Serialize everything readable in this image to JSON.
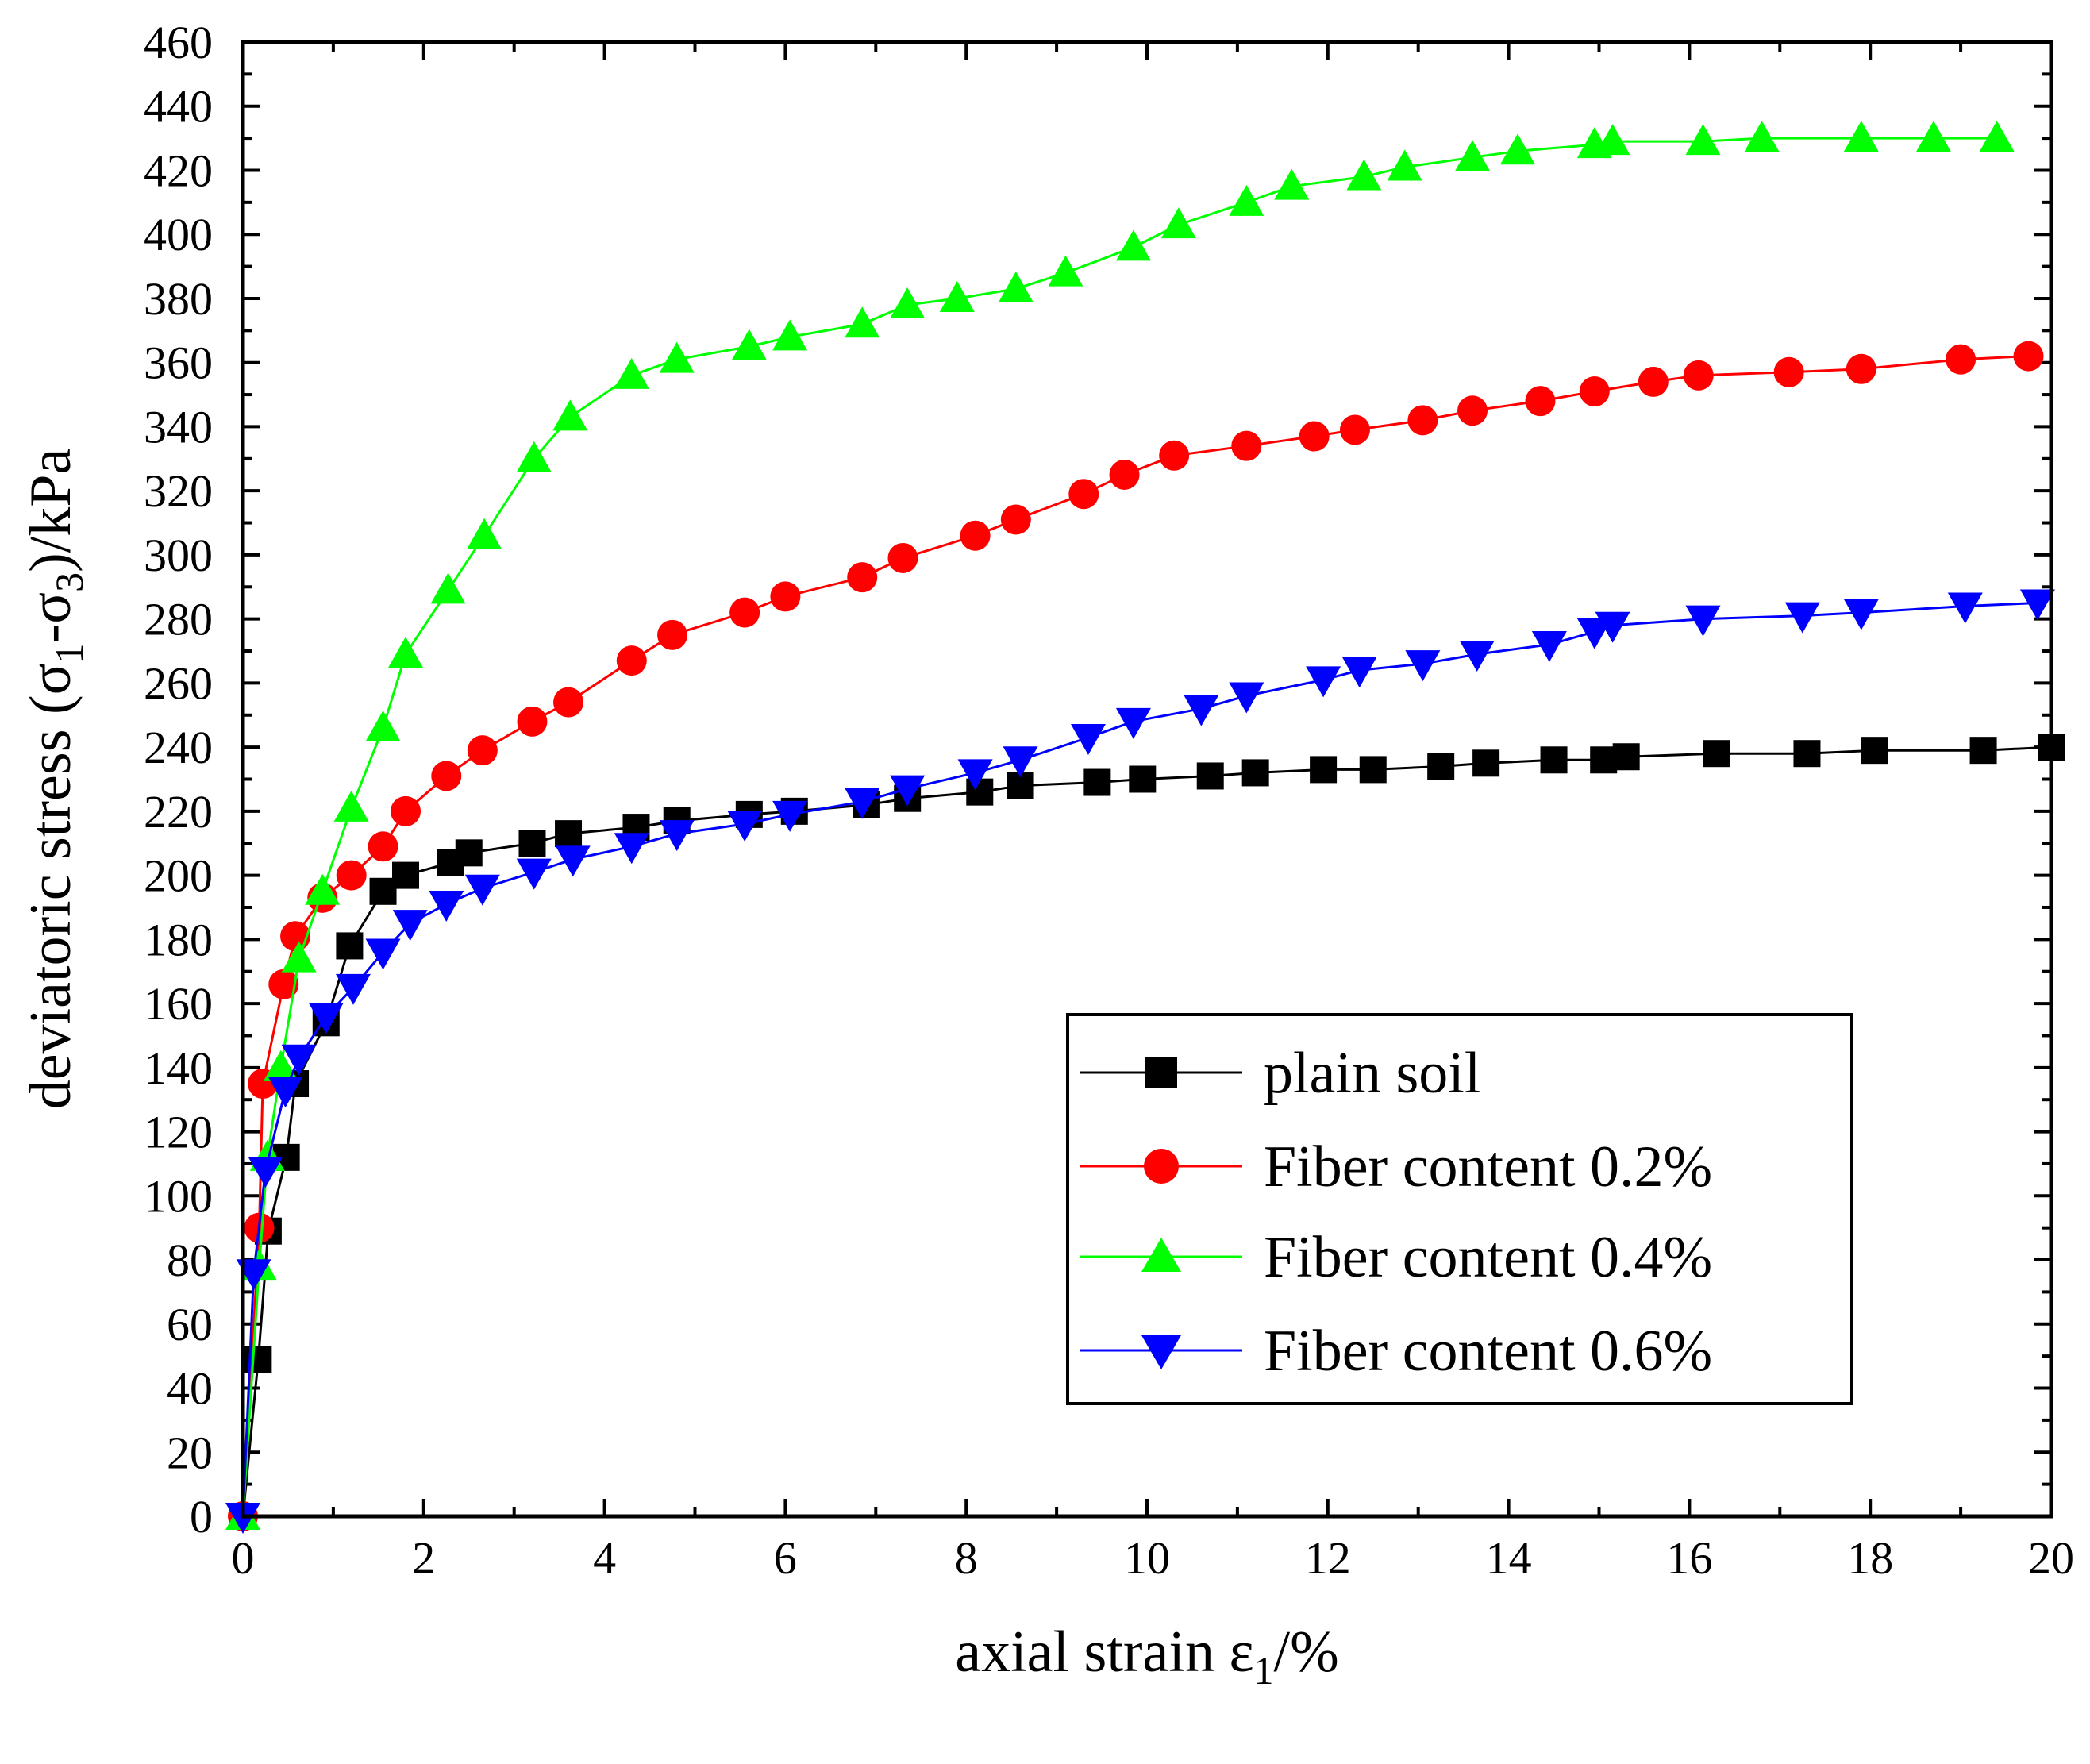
{
  "chart_data": {
    "type": "line",
    "title": "",
    "xlabel": "axial strain ε",
    "xlabel_sub": "1",
    "xlabel_suffix": "/%",
    "ylabel_prefix": "deviatoric stress (σ",
    "ylabel_sub1": "1",
    "ylabel_mid": "-σ",
    "ylabel_sub2": "3",
    "ylabel_suffix": ")/kPa",
    "xlim": [
      0,
      20
    ],
    "ylim": [
      0,
      460
    ],
    "x_ticks": [
      "0",
      "2",
      "4",
      "6",
      "8",
      "10",
      "12",
      "14",
      "16",
      "18",
      "20"
    ],
    "y_ticks": [
      "0",
      "20",
      "40",
      "60",
      "80",
      "100",
      "120",
      "140",
      "160",
      "180",
      "200",
      "220",
      "240",
      "260",
      "280",
      "300",
      "320",
      "340",
      "360",
      "380",
      "400",
      "420",
      "440",
      "460"
    ],
    "legend_position": "bottom-right",
    "series": [
      {
        "name": "plain soil",
        "color": "#000000",
        "marker": "square",
        "x": [
          0,
          0.17,
          0.28,
          0.48,
          0.58,
          0.92,
          1.18,
          1.55,
          1.8,
          2.3,
          2.5,
          3.2,
          3.6,
          4.35,
          4.8,
          5.6,
          6.1,
          6.9,
          7.35,
          8.15,
          8.6,
          9.45,
          9.95,
          10.7,
          11.2,
          11.95,
          12.5,
          13.25,
          13.75,
          14.5,
          15.05,
          15.3,
          16.3,
          17.3,
          18.05,
          19.25,
          20.0
        ],
        "y": [
          0,
          49,
          89,
          112,
          135,
          154,
          178,
          195,
          200,
          204,
          207,
          210,
          213,
          215,
          217,
          219,
          220,
          222,
          224,
          226,
          228,
          229,
          230,
          231,
          232,
          233,
          233,
          234,
          235,
          236,
          236,
          237,
          238,
          238,
          239,
          239,
          240
        ]
      },
      {
        "name": "Fiber content 0.2%",
        "color": "#ff0000",
        "marker": "circle",
        "x": [
          0,
          0.18,
          0.22,
          0.45,
          0.58,
          0.88,
          1.2,
          1.55,
          1.8,
          2.25,
          2.65,
          3.2,
          3.6,
          4.3,
          4.75,
          5.55,
          6.0,
          6.85,
          7.3,
          8.1,
          8.55,
          9.3,
          9.75,
          10.3,
          11.1,
          11.85,
          12.3,
          13.05,
          13.6,
          14.35,
          14.95,
          15.6,
          16.1,
          17.1,
          17.9,
          19.0,
          19.75
        ],
        "y": [
          0,
          90,
          135,
          166,
          181,
          193,
          200,
          209,
          220,
          231,
          239,
          248,
          254,
          267,
          275,
          282,
          287,
          293,
          299,
          306,
          311,
          319,
          325,
          331,
          334,
          337,
          339,
          342,
          345,
          348,
          351,
          354,
          356,
          357,
          358,
          361,
          362
        ]
      },
      {
        "name": "Fiber content 0.4%",
        "color": "#00ff00",
        "marker": "triangle-up",
        "x": [
          0,
          0.18,
          0.27,
          0.42,
          0.62,
          0.88,
          1.2,
          1.55,
          1.8,
          2.27,
          2.67,
          3.22,
          3.62,
          4.3,
          4.8,
          5.6,
          6.05,
          6.85,
          7.35,
          7.9,
          8.55,
          9.1,
          9.85,
          10.35,
          11.1,
          11.6,
          12.4,
          12.85,
          13.6,
          14.1,
          14.95,
          15.15,
          16.15,
          16.8,
          17.9,
          18.7,
          19.4
        ],
        "y": [
          0,
          78,
          112,
          140,
          174,
          195,
          221,
          246,
          269,
          289,
          306,
          330,
          343,
          356,
          361,
          365,
          368,
          372,
          378,
          380,
          383,
          388,
          396,
          403,
          410,
          415,
          418,
          421,
          424,
          426,
          428,
          429,
          429,
          430,
          430,
          430,
          430
        ]
      },
      {
        "name": "Fiber content 0.6%",
        "color": "#0000ff",
        "marker": "triangle-down",
        "x": [
          0,
          0.12,
          0.25,
          0.47,
          0.62,
          0.92,
          1.22,
          1.55,
          1.85,
          2.25,
          2.65,
          3.22,
          3.65,
          4.3,
          4.8,
          5.55,
          6.05,
          6.85,
          7.35,
          8.1,
          8.6,
          9.35,
          9.85,
          10.6,
          11.1,
          11.95,
          12.35,
          13.05,
          13.65,
          14.45,
          14.95,
          15.15,
          16.15,
          17.25,
          17.9,
          19.05,
          19.85
        ],
        "y": [
          0,
          76,
          108,
          133,
          143,
          156,
          165,
          176,
          185,
          191,
          196,
          201,
          205,
          209,
          213,
          216,
          219,
          223,
          227,
          232,
          236,
          243,
          248,
          252,
          256,
          261,
          264,
          266,
          269,
          272,
          276,
          278,
          280,
          281,
          282,
          284,
          285
        ]
      }
    ]
  }
}
